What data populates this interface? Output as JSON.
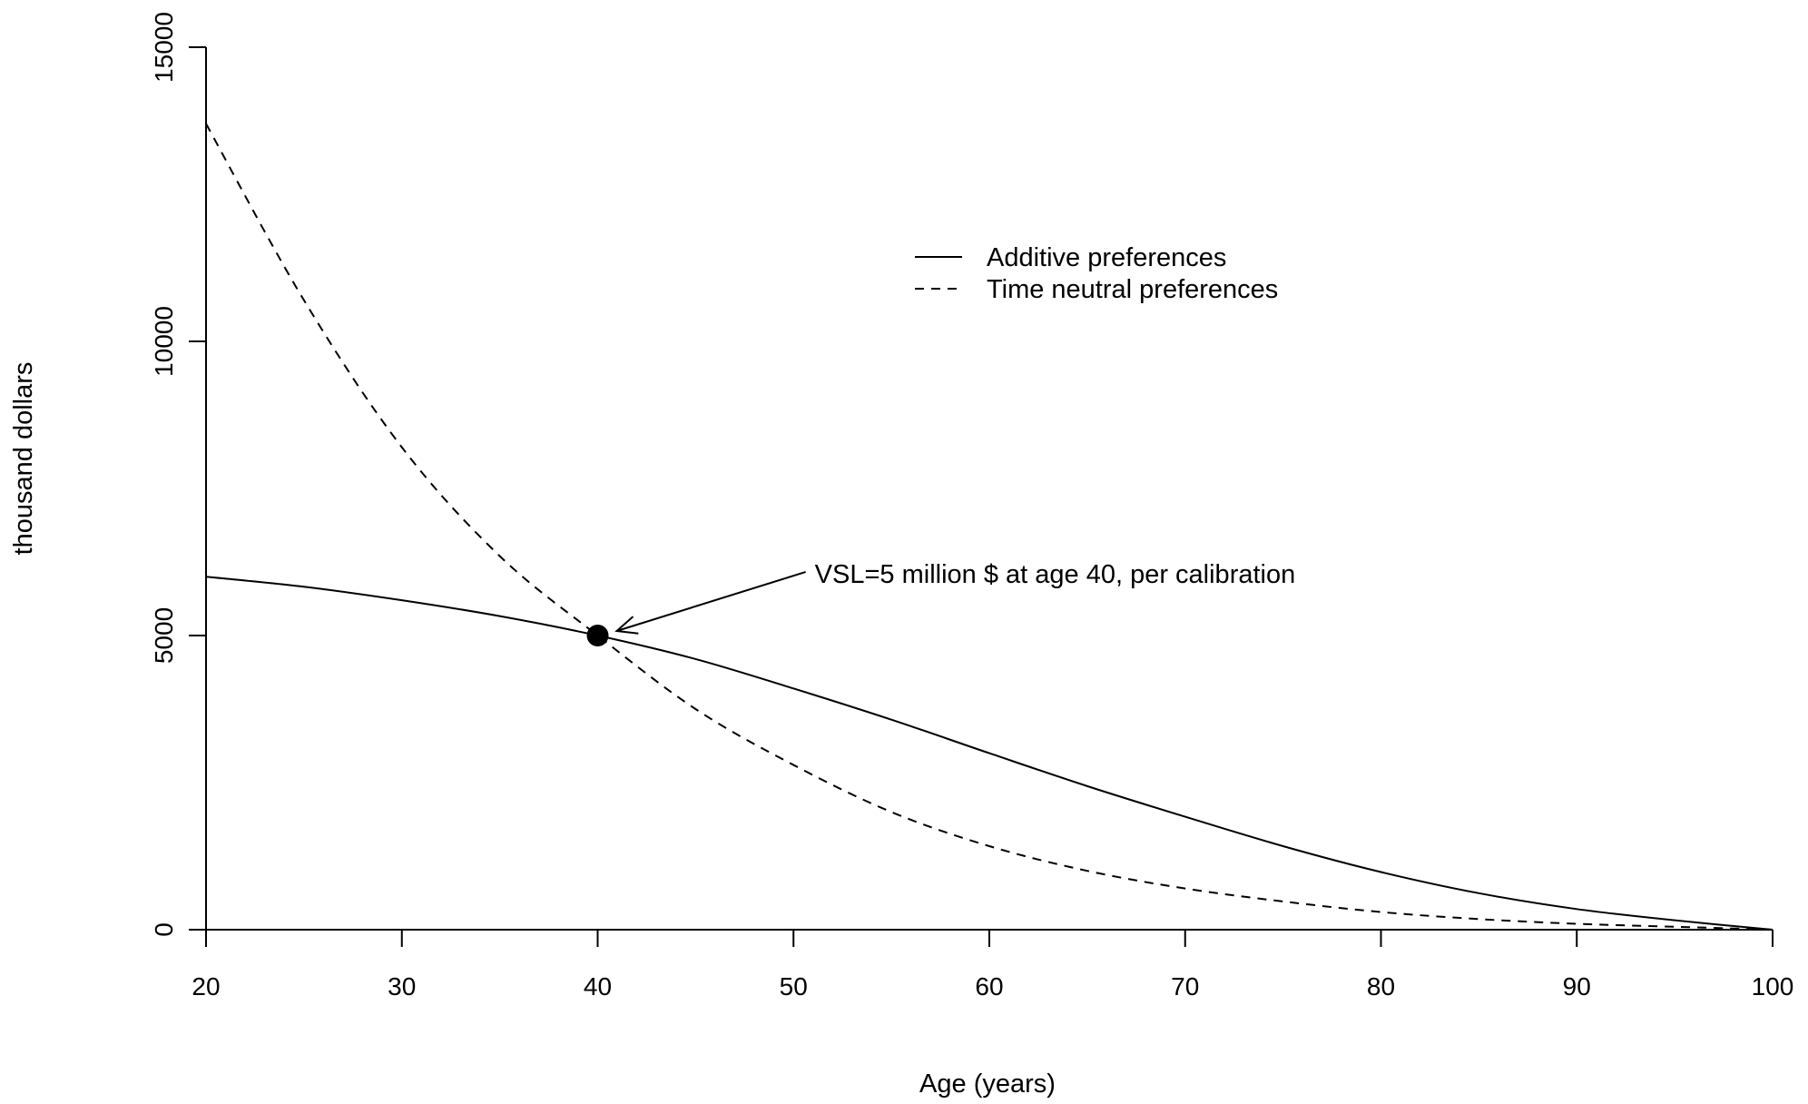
{
  "chart_data": {
    "type": "line",
    "title": "",
    "xlabel": "Age (years)",
    "ylabel": "thousand dollars",
    "xlim": [
      20,
      100
    ],
    "ylim": [
      0,
      15000
    ],
    "x_ticks": [
      20,
      30,
      40,
      50,
      60,
      70,
      80,
      90,
      100
    ],
    "y_ticks": [
      0,
      5000,
      10000,
      15000
    ],
    "grid": false,
    "legend_position": "top-center",
    "series": [
      {
        "name": "Additive preferences",
        "line_style": "solid",
        "color": "#000000",
        "x": [
          20,
          25,
          30,
          35,
          40,
          45,
          50,
          55,
          60,
          65,
          70,
          75,
          80,
          85,
          90,
          95,
          100
        ],
        "values": [
          6000,
          5830,
          5600,
          5330,
          5000,
          4600,
          4100,
          3570,
          3000,
          2440,
          1920,
          1420,
          980,
          620,
          350,
          160,
          0
        ]
      },
      {
        "name": "Time neutral preferences",
        "line_style": "dashed",
        "color": "#000000",
        "x": [
          20,
          25,
          30,
          35,
          40,
          45,
          50,
          55,
          60,
          65,
          70,
          75,
          80,
          85,
          90,
          95,
          100
        ],
        "values": [
          13700,
          10700,
          8200,
          6350,
          5000,
          3750,
          2800,
          2000,
          1420,
          1000,
          700,
          480,
          300,
          180,
          100,
          50,
          0
        ]
      }
    ],
    "highlight_point": {
      "x": 40,
      "y": 5000
    },
    "annotation": {
      "text": "VSL=5 million $ at age 40, per calibration",
      "text_x": 50.9,
      "text_y": 6050
    }
  }
}
